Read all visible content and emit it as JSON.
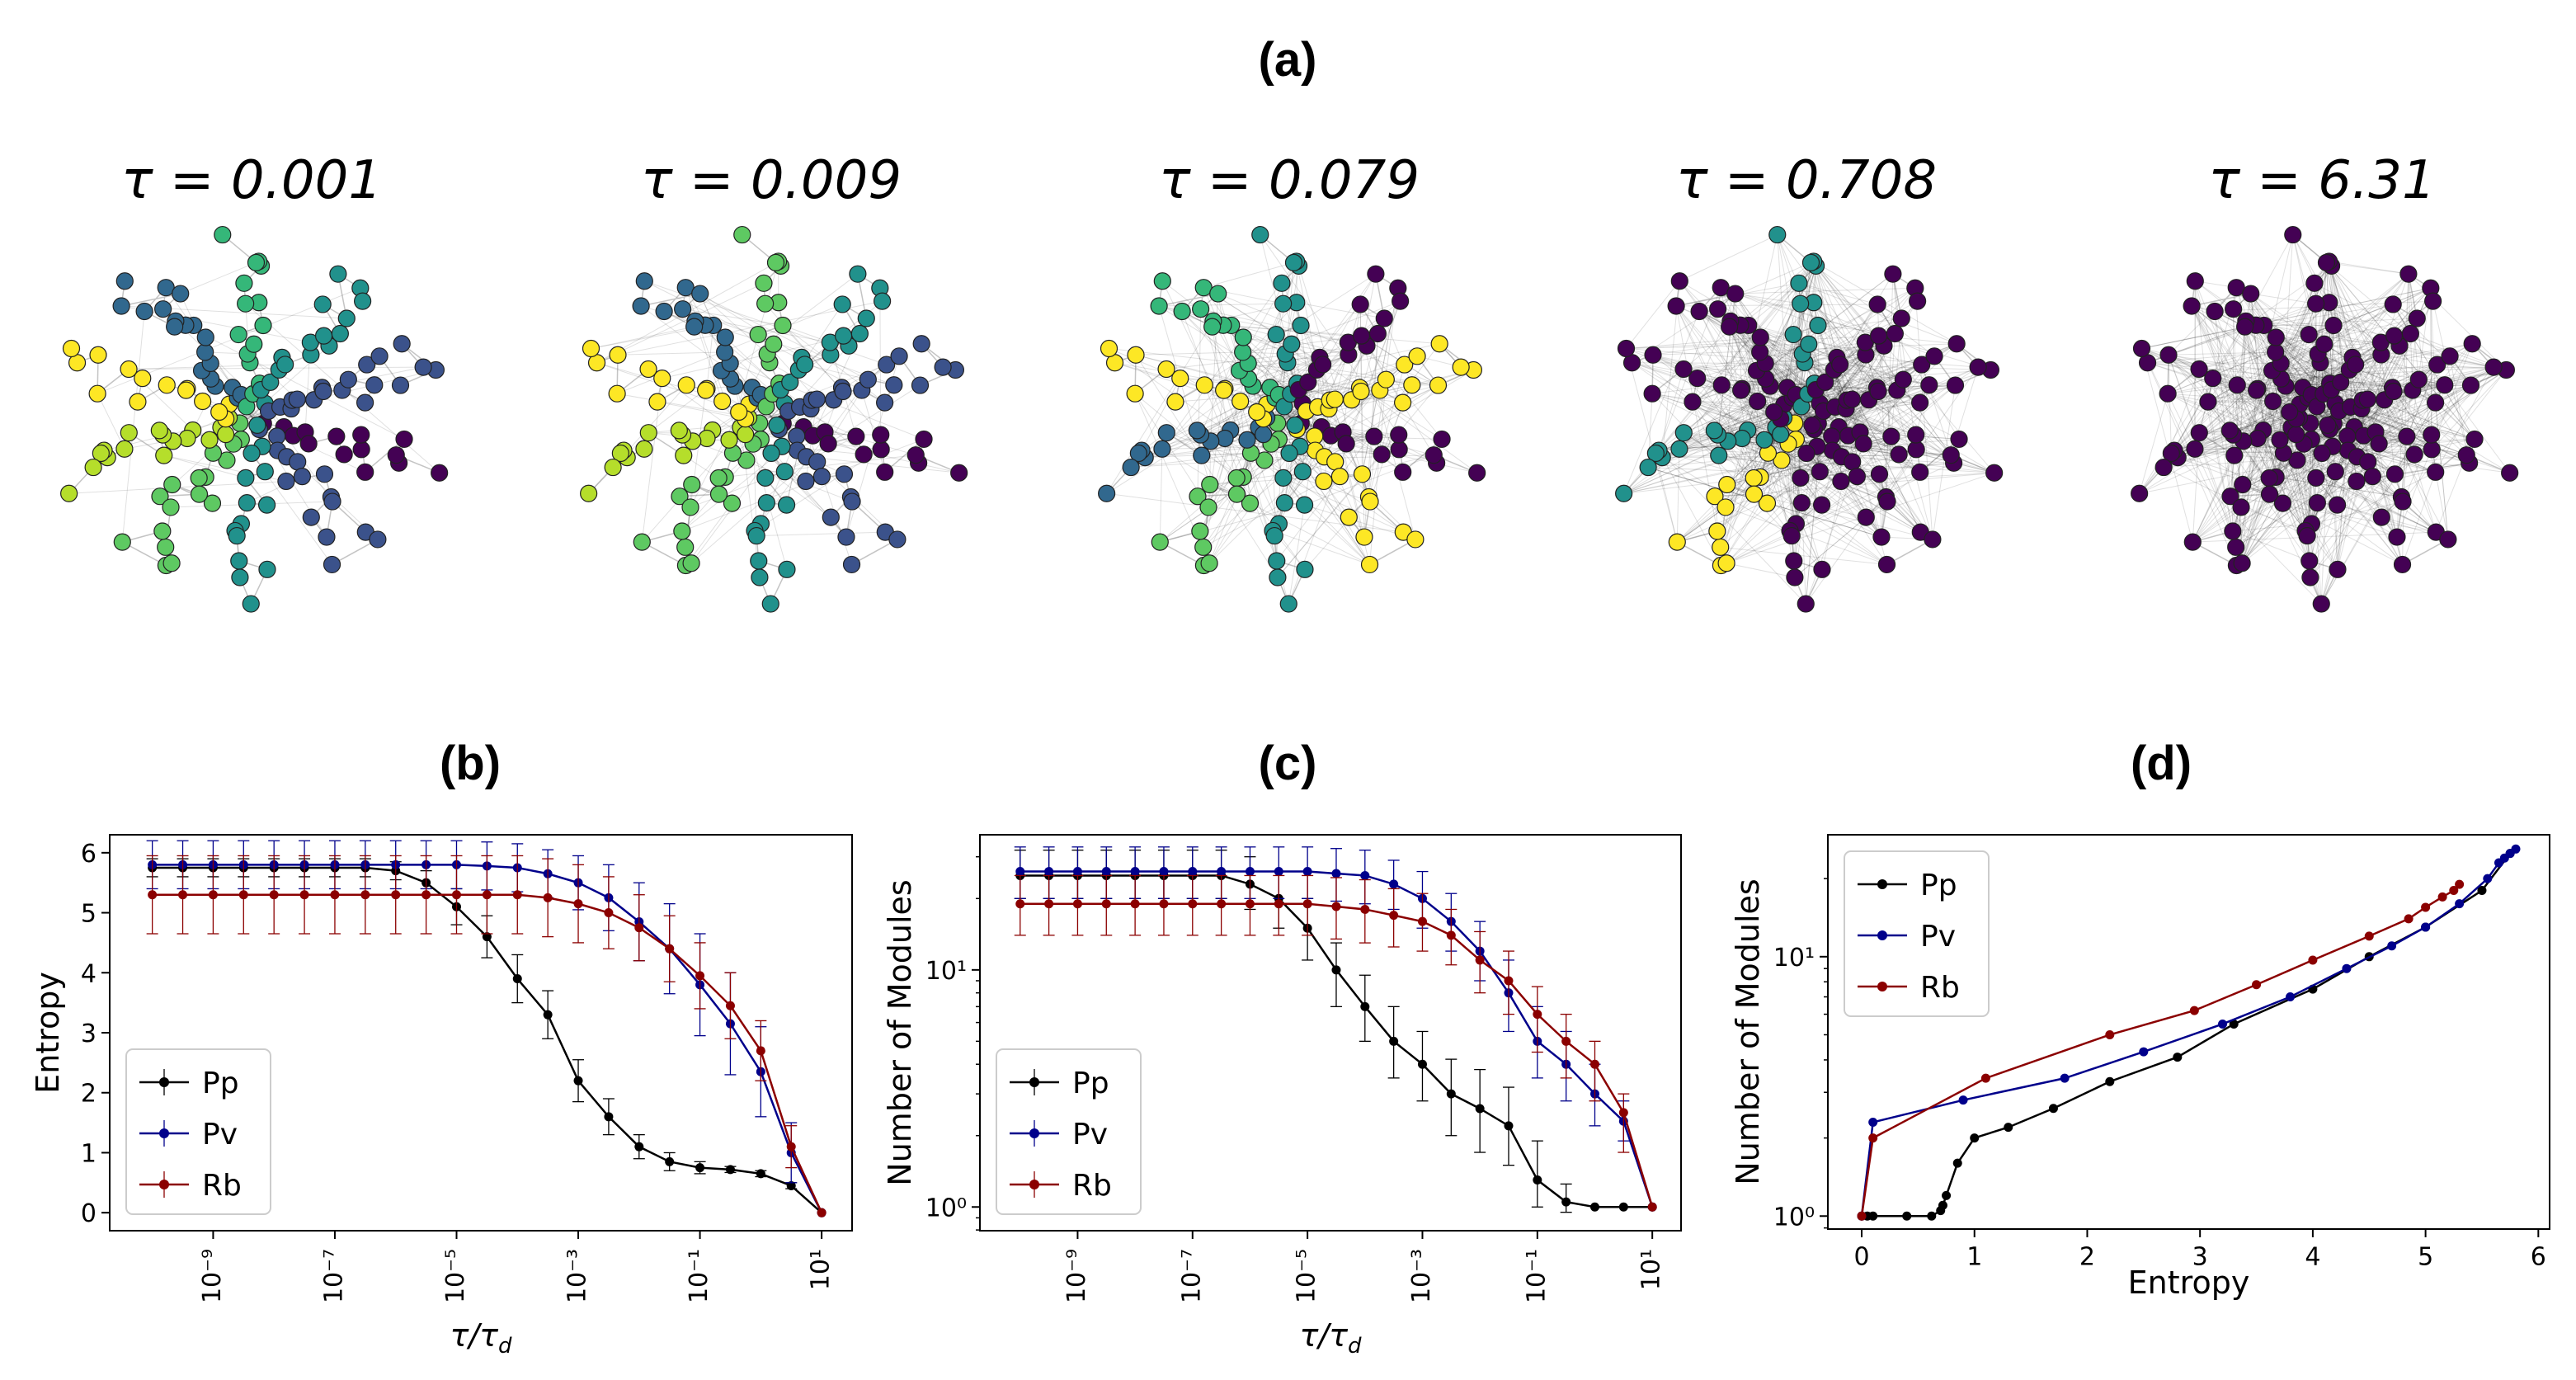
{
  "figure": {
    "panel_a_label": "(a)",
    "panel_b_label": "(b)",
    "panel_c_label": "(c)",
    "panel_d_label": "(d)"
  },
  "colors": {
    "pp": "#000000",
    "pv": "#00008b",
    "rb": "#8b0000",
    "viridis": [
      "#440154",
      "#3b528b",
      "#21918c",
      "#5ec962",
      "#b5de2b",
      "#fde725",
      "#31688e",
      "#35b779"
    ]
  },
  "networks": [
    {
      "title": "τ = 0.001",
      "palette": [
        0,
        1,
        2,
        3,
        4,
        5,
        6,
        7,
        2,
        1
      ]
    },
    {
      "title": "τ = 0.009",
      "palette": [
        0,
        1,
        2,
        3,
        4,
        5,
        6,
        3,
        2,
        1
      ]
    },
    {
      "title": "τ = 0.079",
      "palette": [
        0,
        5,
        2,
        3,
        6,
        5,
        7,
        2,
        0,
        5
      ]
    },
    {
      "title": "τ = 0.708",
      "palette": [
        0,
        0,
        0,
        5,
        2,
        0,
        0,
        2,
        0,
        0
      ]
    },
    {
      "title": "τ = 6.31",
      "palette": [
        0,
        0,
        0,
        0,
        0,
        0,
        0,
        0,
        0,
        0
      ]
    }
  ],
  "chart_data": [
    {
      "type": "line",
      "panel": "b",
      "xlabel": "τ/τ_d",
      "ylabel": "Entropy",
      "xscale": "log",
      "xlim": [
        -10.7,
        1.5
      ],
      "ylim": [
        -0.3,
        6.3
      ],
      "xticks": [
        -9,
        -7,
        -5,
        -3,
        -1,
        1
      ],
      "xtick_labels": [
        "10⁻⁹",
        "10⁻⁷",
        "10⁻⁵",
        "10⁻³",
        "10⁻¹",
        "10¹"
      ],
      "yticks": [
        0,
        1,
        2,
        3,
        4,
        5,
        6
      ],
      "ytick_labels": [
        "0",
        "1",
        "2",
        "3",
        "4",
        "5",
        "6"
      ],
      "legend": [
        "Pp",
        "Pv",
        "Rb"
      ],
      "legend_loc": "lower-left",
      "series": [
        {
          "name": "Pp",
          "color_key": "pp",
          "x": [
            -10,
            -9.5,
            -9,
            -8.5,
            -8,
            -7.5,
            -7,
            -6.5,
            -6,
            -5.5,
            -5,
            -4.5,
            -4,
            -3.5,
            -3,
            -2.5,
            -2,
            -1.5,
            -1,
            -0.5,
            0,
            0.5,
            1
          ],
          "y": [
            5.75,
            5.75,
            5.75,
            5.75,
            5.75,
            5.75,
            5.75,
            5.75,
            5.7,
            5.5,
            5.1,
            4.6,
            3.9,
            3.3,
            2.2,
            1.6,
            1.1,
            0.85,
            0.75,
            0.72,
            0.65,
            0.45,
            0.0
          ],
          "err": [
            0.15,
            0.15,
            0.15,
            0.15,
            0.15,
            0.15,
            0.15,
            0.15,
            0.15,
            0.2,
            0.3,
            0.35,
            0.4,
            0.4,
            0.35,
            0.3,
            0.2,
            0.15,
            0.1,
            0.05,
            0.05,
            0.05,
            0.0
          ]
        },
        {
          "name": "Pv",
          "color_key": "pv",
          "x": [
            -10,
            -9.5,
            -9,
            -8.5,
            -8,
            -7.5,
            -7,
            -6.5,
            -6,
            -5.5,
            -5,
            -4.5,
            -4,
            -3.5,
            -3,
            -2.5,
            -2,
            -1.5,
            -1,
            -0.5,
            0,
            0.5,
            1
          ],
          "y": [
            5.8,
            5.8,
            5.8,
            5.8,
            5.8,
            5.8,
            5.8,
            5.8,
            5.8,
            5.8,
            5.8,
            5.78,
            5.75,
            5.65,
            5.5,
            5.25,
            4.85,
            4.4,
            3.8,
            3.15,
            2.35,
            1.0,
            0.0
          ],
          "err": [
            0.4,
            0.4,
            0.4,
            0.4,
            0.4,
            0.4,
            0.4,
            0.4,
            0.4,
            0.4,
            0.4,
            0.4,
            0.4,
            0.4,
            0.45,
            0.55,
            0.65,
            0.75,
            0.85,
            0.85,
            0.75,
            0.5,
            0.0
          ]
        },
        {
          "name": "Rb",
          "color_key": "rb",
          "x": [
            -10,
            -9.5,
            -9,
            -8.5,
            -8,
            -7.5,
            -7,
            -6.5,
            -6,
            -5.5,
            -5,
            -4.5,
            -4,
            -3.5,
            -3,
            -2.5,
            -2,
            -1.5,
            -1,
            -0.5,
            0,
            0.5,
            1
          ],
          "y": [
            5.3,
            5.3,
            5.3,
            5.3,
            5.3,
            5.3,
            5.3,
            5.3,
            5.3,
            5.3,
            5.3,
            5.3,
            5.3,
            5.25,
            5.15,
            5.0,
            4.75,
            4.4,
            3.95,
            3.45,
            2.7,
            1.1,
            0.0
          ],
          "err": [
            0.65,
            0.65,
            0.65,
            0.65,
            0.65,
            0.65,
            0.65,
            0.65,
            0.65,
            0.65,
            0.65,
            0.65,
            0.65,
            0.65,
            0.65,
            0.6,
            0.55,
            0.55,
            0.55,
            0.55,
            0.5,
            0.35,
            0.0
          ]
        }
      ]
    },
    {
      "type": "line",
      "panel": "c",
      "xlabel": "τ/τ_d",
      "ylabel": "Number of Modules",
      "xscale": "log",
      "yscale": "log",
      "xlim": [
        -10.7,
        1.5
      ],
      "ylim": [
        -0.1,
        1.57
      ],
      "xticks": [
        -9,
        -7,
        -5,
        -3,
        -1,
        1
      ],
      "xtick_labels": [
        "10⁻⁹",
        "10⁻⁷",
        "10⁻⁵",
        "10⁻³",
        "10⁻¹",
        "10¹"
      ],
      "yticks": [
        0,
        1
      ],
      "ytick_labels": [
        "10⁰",
        "10¹"
      ],
      "legend": [
        "Pp",
        "Pv",
        "Rb"
      ],
      "legend_loc": "lower-left",
      "series": [
        {
          "name": "Pp",
          "color_key": "pp",
          "x": [
            -10,
            -9.5,
            -9,
            -8.5,
            -8,
            -7.5,
            -7,
            -6.5,
            -6,
            -5.5,
            -5,
            -4.5,
            -4,
            -3.5,
            -3,
            -2.5,
            -2,
            -1.5,
            -1,
            -0.5,
            0,
            0.5,
            1
          ],
          "y": [
            25,
            25,
            25,
            25,
            25,
            25,
            25,
            25,
            23,
            20,
            15,
            10,
            7,
            5,
            4,
            3,
            2.6,
            2.2,
            1.3,
            1.05,
            1,
            1,
            1
          ],
          "err_up": [
            7,
            7,
            7,
            7,
            7,
            7,
            7,
            7,
            7,
            6,
            5,
            3,
            2.5,
            2,
            1.5,
            1.2,
            1.2,
            1,
            0.6,
            0.2,
            0,
            0,
            0
          ],
          "err_down": [
            5,
            5,
            5,
            5,
            5,
            5,
            5,
            5,
            5,
            5,
            4,
            3,
            2,
            1.5,
            1.2,
            1,
            0.9,
            0.7,
            0.3,
            0.1,
            0,
            0,
            0
          ]
        },
        {
          "name": "Pv",
          "color_key": "pv",
          "x": [
            -10,
            -9.5,
            -9,
            -8.5,
            -8,
            -7.5,
            -7,
            -6.5,
            -6,
            -5.5,
            -5,
            -4.5,
            -4,
            -3.5,
            -3,
            -2.5,
            -2,
            -1.5,
            -1,
            -0.5,
            0,
            0.5,
            1
          ],
          "y": [
            26,
            26,
            26,
            26,
            26,
            26,
            26,
            26,
            26,
            26,
            26,
            25.5,
            25,
            23,
            20,
            16,
            12,
            8,
            5,
            4,
            3,
            2.3,
            1
          ],
          "err_up": [
            7,
            7,
            7,
            7,
            7,
            7,
            7,
            7,
            7,
            7,
            7,
            7,
            7,
            6,
            6,
            5,
            4,
            3,
            2,
            1.5,
            1,
            0.5,
            0
          ],
          "err_down": [
            6,
            6,
            6,
            6,
            6,
            6,
            6,
            6,
            6,
            6,
            6,
            6,
            6,
            5,
            5,
            4,
            3,
            2.5,
            1.5,
            1.2,
            0.8,
            0.4,
            0
          ]
        },
        {
          "name": "Rb",
          "color_key": "rb",
          "x": [
            -10,
            -9.5,
            -9,
            -8.5,
            -8,
            -7.5,
            -7,
            -6.5,
            -6,
            -5.5,
            -5,
            -4.5,
            -4,
            -3.5,
            -3,
            -2.5,
            -2,
            -1.5,
            -1,
            -0.5,
            0,
            0.5,
            1
          ],
          "y": [
            19,
            19,
            19,
            19,
            19,
            19,
            19,
            19,
            19,
            19,
            19,
            18.5,
            18,
            17,
            16,
            14,
            11,
            9,
            6.5,
            5,
            4,
            2.5,
            1
          ],
          "err_up": [
            6,
            6,
            6,
            6,
            6,
            6,
            6,
            6,
            6,
            6,
            6,
            6,
            6,
            5,
            5,
            4,
            3.5,
            3,
            2,
            1.5,
            1,
            0.5,
            0
          ],
          "err_down": [
            5,
            5,
            5,
            5,
            5,
            5,
            5,
            5,
            5,
            5,
            5,
            5,
            5,
            4.5,
            4,
            3.5,
            3,
            2.5,
            2,
            1.5,
            1.2,
            0.8,
            0
          ]
        }
      ]
    },
    {
      "type": "line",
      "panel": "d",
      "xlabel": "Entropy",
      "ylabel": "Number of Modules",
      "yscale": "log",
      "xlim": [
        -0.3,
        6.1
      ],
      "ylim": [
        -0.05,
        1.47
      ],
      "xticks": [
        0,
        1,
        2,
        3,
        4,
        5,
        6
      ],
      "xtick_labels": [
        "0",
        "1",
        "2",
        "3",
        "4",
        "5",
        "6"
      ],
      "yticks": [
        0,
        1
      ],
      "ytick_labels": [
        "10⁰",
        "10¹"
      ],
      "legend": [
        "Pp",
        "Pv",
        "Rb"
      ],
      "legend_loc": "upper-left",
      "series": [
        {
          "name": "Pp",
          "color_key": "pp",
          "x": [
            0,
            0.05,
            0.1,
            0.4,
            0.62,
            0.7,
            0.72,
            0.75,
            0.85,
            1.0,
            1.3,
            1.7,
            2.2,
            2.8,
            3.3,
            4.0,
            4.5,
            5.0,
            5.5,
            5.75
          ],
          "y": [
            1,
            1,
            1,
            1,
            1,
            1.05,
            1.1,
            1.2,
            1.6,
            2.0,
            2.2,
            2.6,
            3.3,
            4.1,
            5.5,
            7.5,
            10,
            13,
            18,
            25
          ]
        },
        {
          "name": "Pv",
          "color_key": "pv",
          "x": [
            0,
            0.1,
            0.9,
            1.8,
            2.5,
            3.2,
            3.8,
            4.3,
            4.7,
            5.0,
            5.3,
            5.55,
            5.65,
            5.7,
            5.75,
            5.8
          ],
          "y": [
            1,
            2.3,
            2.8,
            3.4,
            4.3,
            5.5,
            7.0,
            9.0,
            11,
            13,
            16,
            20,
            23,
            24,
            25,
            26
          ]
        },
        {
          "name": "Rb",
          "color_key": "rb",
          "x": [
            0,
            0.1,
            1.1,
            2.2,
            2.95,
            3.5,
            4.0,
            4.5,
            4.85,
            5.0,
            5.15,
            5.25,
            5.3
          ],
          "y": [
            1,
            2.0,
            3.4,
            5.0,
            6.2,
            7.8,
            9.7,
            12,
            14,
            15.5,
            17,
            18,
            19
          ]
        }
      ]
    }
  ]
}
